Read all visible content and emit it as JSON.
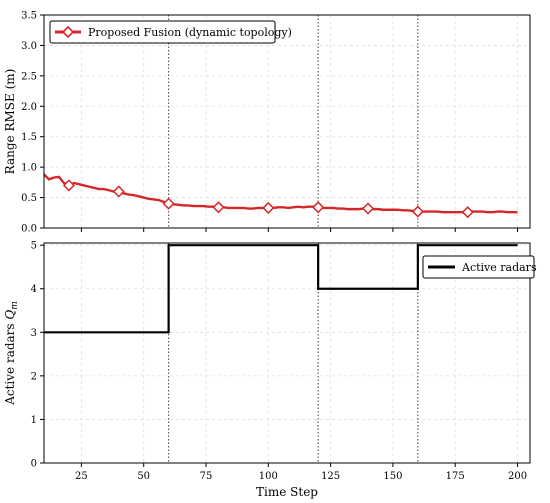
{
  "chart_data": [
    {
      "type": "line",
      "xlabel": "",
      "ylabel": "Range RMSE (m)",
      "xlim": [
        10,
        205
      ],
      "ylim": [
        0.0,
        3.5
      ],
      "yticks": [
        0.0,
        0.5,
        1.0,
        1.5,
        2.0,
        2.5,
        3.0,
        3.5
      ],
      "ytick_labels": [
        "0.0",
        "0.5",
        "1.0",
        "1.5",
        "2.0",
        "2.5",
        "3.0",
        "3.5"
      ],
      "xticks": [
        25,
        50,
        75,
        100,
        125,
        150,
        175,
        200
      ],
      "show_xtick_labels": false,
      "grid": true,
      "legend_position": "top-left",
      "series": [
        {
          "name": "Proposed Fusion (dynamic topology)",
          "color": "#d62728",
          "marker": "diamond",
          "marker_x": [
            20,
            40,
            60,
            80,
            100,
            120,
            140,
            160,
            180
          ],
          "x": [
            10,
            12,
            14,
            16,
            18,
            20,
            22,
            24,
            26,
            28,
            30,
            32,
            34,
            36,
            38,
            40,
            42,
            44,
            46,
            48,
            50,
            52,
            54,
            56,
            58,
            60,
            62,
            64,
            66,
            68,
            70,
            72,
            74,
            76,
            78,
            80,
            82,
            84,
            86,
            88,
            90,
            92,
            94,
            96,
            98,
            100,
            102,
            104,
            106,
            108,
            110,
            112,
            114,
            116,
            118,
            120,
            122,
            124,
            126,
            128,
            130,
            132,
            134,
            136,
            138,
            140,
            142,
            144,
            146,
            148,
            150,
            152,
            154,
            156,
            158,
            160,
            162,
            164,
            166,
            168,
            170,
            172,
            174,
            176,
            178,
            180,
            182,
            184,
            186,
            188,
            190,
            192,
            194,
            196,
            198,
            200
          ],
          "values": [
            0.88,
            0.8,
            0.83,
            0.84,
            0.74,
            0.7,
            0.74,
            0.72,
            0.7,
            0.68,
            0.66,
            0.64,
            0.64,
            0.62,
            0.6,
            0.6,
            0.57,
            0.55,
            0.54,
            0.52,
            0.5,
            0.48,
            0.47,
            0.46,
            0.43,
            0.4,
            0.39,
            0.38,
            0.37,
            0.37,
            0.36,
            0.36,
            0.36,
            0.35,
            0.35,
            0.34,
            0.34,
            0.33,
            0.33,
            0.33,
            0.33,
            0.32,
            0.32,
            0.33,
            0.33,
            0.33,
            0.33,
            0.34,
            0.34,
            0.33,
            0.34,
            0.35,
            0.34,
            0.35,
            0.35,
            0.34,
            0.33,
            0.33,
            0.33,
            0.32,
            0.32,
            0.31,
            0.31,
            0.31,
            0.32,
            0.32,
            0.31,
            0.31,
            0.3,
            0.3,
            0.3,
            0.3,
            0.29,
            0.29,
            0.28,
            0.27,
            0.27,
            0.27,
            0.27,
            0.27,
            0.26,
            0.26,
            0.26,
            0.26,
            0.26,
            0.26,
            0.27,
            0.27,
            0.27,
            0.26,
            0.26,
            0.27,
            0.27,
            0.26,
            0.26,
            0.26
          ]
        }
      ],
      "vlines": [
        60,
        120,
        160
      ]
    },
    {
      "type": "line",
      "xlabel": "Time Step",
      "ylabel": "Active radars Q_m",
      "ylabel_main": "Active radars ",
      "ylabel_symbol": "Q",
      "ylabel_sub": "m",
      "xlim": [
        10,
        205
      ],
      "ylim": [
        0,
        5.05
      ],
      "yticks": [
        0,
        1,
        2,
        3,
        4,
        5
      ],
      "ytick_labels": [
        "0",
        "1",
        "2",
        "3",
        "4",
        "5"
      ],
      "xticks": [
        25,
        50,
        75,
        100,
        125,
        150,
        175,
        200
      ],
      "xtick_labels": [
        "25",
        "50",
        "75",
        "100",
        "125",
        "150",
        "175",
        "200"
      ],
      "grid": true,
      "legend_position": "top-right",
      "series": [
        {
          "name": "Active radars",
          "color": "#000000",
          "step": true,
          "x": [
            10,
            60,
            60,
            120,
            120,
            160,
            160,
            200
          ],
          "values": [
            3,
            3,
            5,
            5,
            4,
            4,
            5,
            5
          ]
        }
      ],
      "vlines": [
        60,
        120,
        160
      ]
    }
  ]
}
